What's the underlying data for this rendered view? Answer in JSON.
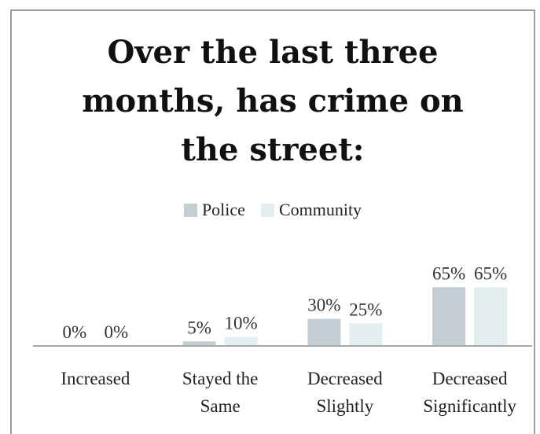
{
  "chart_data": {
    "type": "bar",
    "title_lines": [
      "Over the last three",
      "months, has crime on",
      "the street:"
    ],
    "categories": [
      [
        "Increased"
      ],
      [
        "Stayed the",
        "Same"
      ],
      [
        "Decreased",
        "Slightly"
      ],
      [
        "Decreased",
        "Significantly"
      ]
    ],
    "series": [
      {
        "name": "Police",
        "values": [
          0,
          5,
          30,
          65
        ],
        "labels": [
          "0%",
          "5%",
          "30%",
          "65%"
        ]
      },
      {
        "name": "Community",
        "values": [
          0,
          10,
          25,
          65
        ],
        "labels": [
          "0%",
          "10%",
          "25%",
          "65%"
        ]
      }
    ],
    "ylim": [
      0,
      100
    ],
    "legend_position": "top-center",
    "grid": false
  },
  "colors": {
    "police": "#c3ced3",
    "community": "#e3eef0",
    "axis": "#a8a8a8"
  }
}
